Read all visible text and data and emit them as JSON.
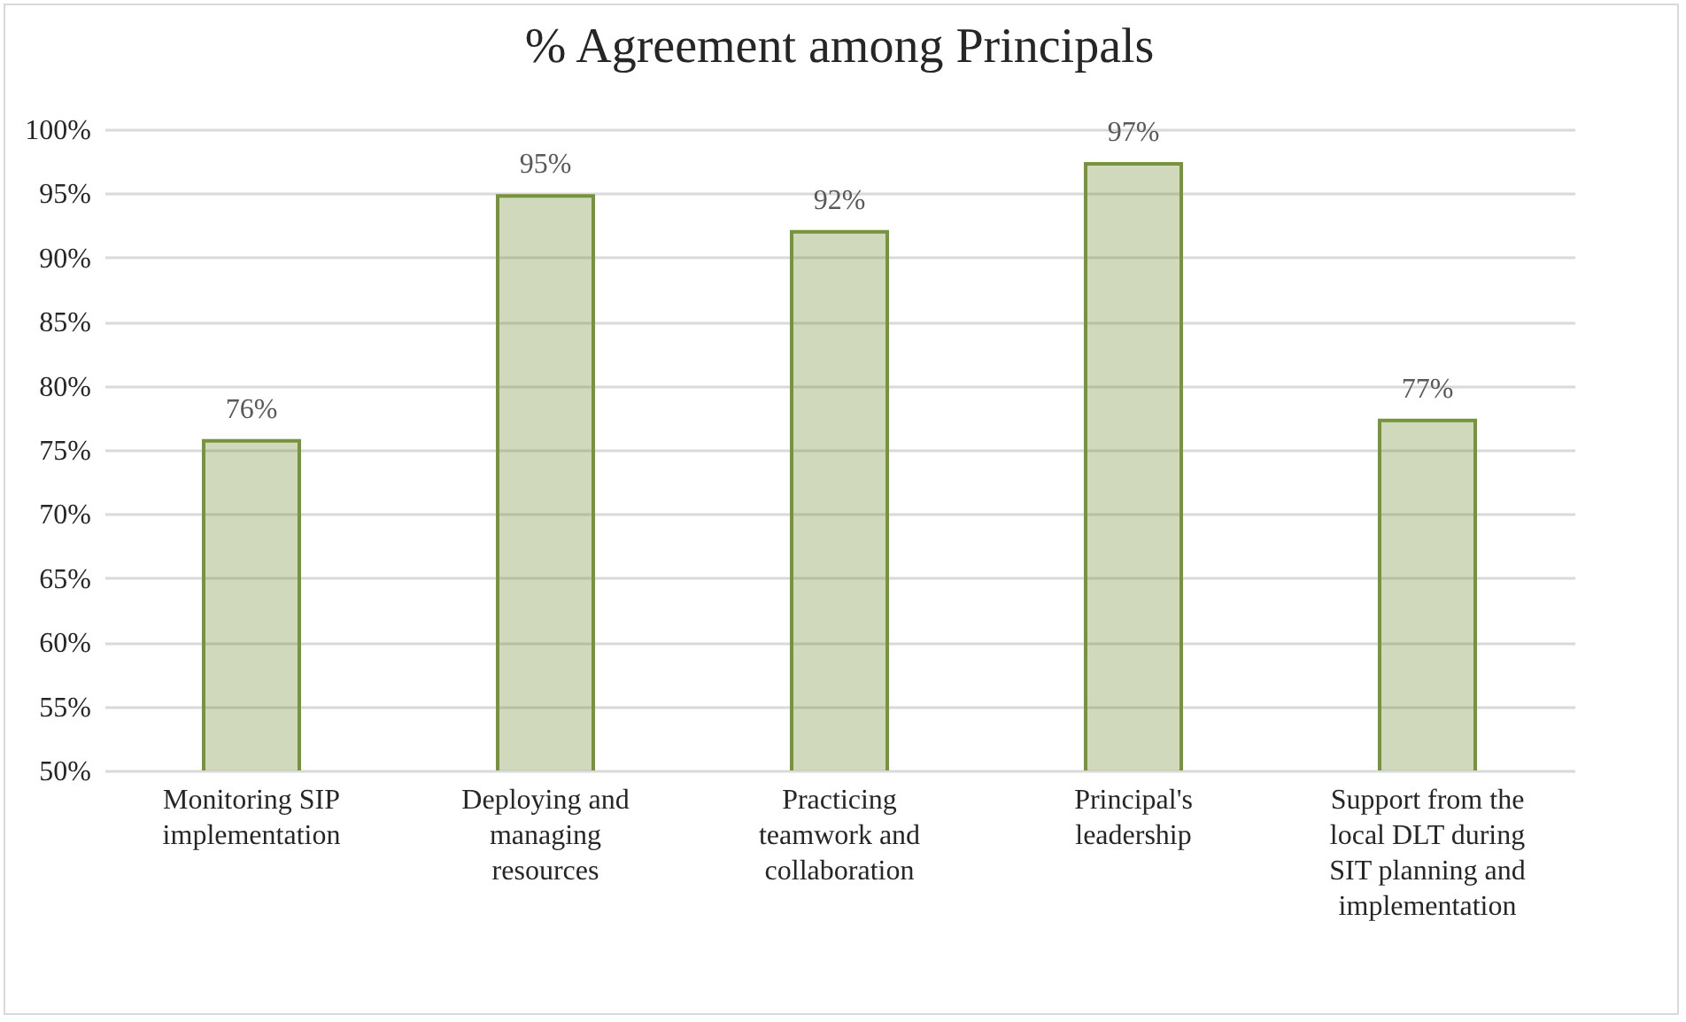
{
  "chart_data": {
    "type": "bar",
    "title": "% Agreement among Principals",
    "categories": [
      "Monitoring SIP implementation",
      "Deploying and managing resources",
      "Practicing teamwork and collaboration",
      "Principal's leadership",
      "Support from the local DLT during SIT planning and implementation"
    ],
    "values": [
      75.7,
      94.8,
      92.0,
      97.3,
      77.3
    ],
    "value_labels": [
      "76%",
      "95%",
      "92%",
      "97%",
      "77%"
    ],
    "colors": [
      "#77933c",
      "#77933c",
      "#77933c",
      "#77933c",
      "#77933c"
    ],
    "ylim": [
      50,
      100
    ],
    "yticks": [
      {
        "value": 50,
        "label": "50%"
      },
      {
        "value": 55,
        "label": "55%"
      },
      {
        "value": 60,
        "label": "60%"
      },
      {
        "value": 65,
        "label": "65%"
      },
      {
        "value": 70,
        "label": "70%"
      },
      {
        "value": 75,
        "label": "75%"
      },
      {
        "value": 80,
        "label": "80%"
      },
      {
        "value": 85,
        "label": "85%"
      },
      {
        "value": 90,
        "label": "90%"
      },
      {
        "value": 95,
        "label": "95%"
      },
      {
        "value": 100,
        "label": "100%"
      }
    ],
    "grid": "y"
  }
}
